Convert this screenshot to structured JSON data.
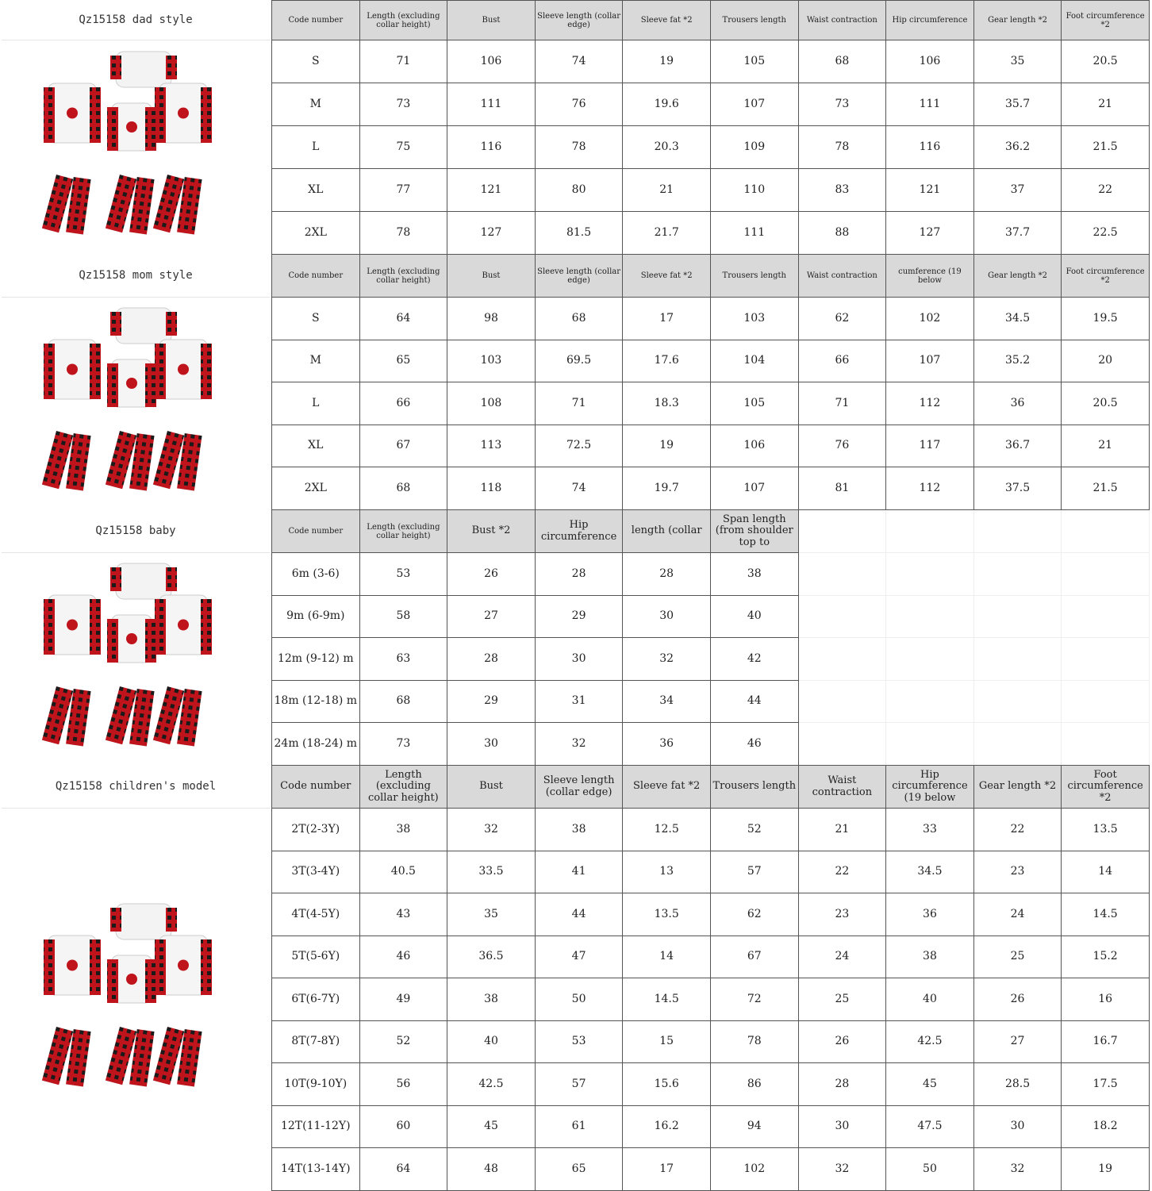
{
  "colors": {
    "header_bg": "#d9d9d9",
    "plaid_red": "#c0141c",
    "plaid_dark": "#1a1a1a"
  },
  "sections": [
    {
      "label": "Qz15158 dad style",
      "image": "family-christmas-pajamas-image",
      "header_size": "small",
      "headers": [
        "Code number",
        "Length (excluding collar height)",
        "Bust",
        "Sleeve length (collar edge)",
        "Sleeve fat *2",
        "Trousers length",
        "Waist contraction",
        "Hip circumference",
        "Gear length *2",
        "Foot circumference *2"
      ],
      "rows": [
        [
          "S",
          "71",
          "106",
          "74",
          "19",
          "105",
          "68",
          "106",
          "35",
          "20.5"
        ],
        [
          "M",
          "73",
          "111",
          "76",
          "19.6",
          "107",
          "73",
          "111",
          "35.7",
          "21"
        ],
        [
          "L",
          "75",
          "116",
          "78",
          "20.3",
          "109",
          "78",
          "116",
          "36.2",
          "21.5"
        ],
        [
          "XL",
          "77",
          "121",
          "80",
          "21",
          "110",
          "83",
          "121",
          "37",
          "22"
        ],
        [
          "2XL",
          "78",
          "127",
          "81.5",
          "21.7",
          "111",
          "88",
          "127",
          "37.7",
          "22.5"
        ]
      ]
    },
    {
      "label": "Qz15158 mom style",
      "image": "family-christmas-pajamas-image",
      "header_size": "small",
      "headers": [
        "Code number",
        "Length (excluding collar height)",
        "Bust",
        "Sleeve length (collar edge)",
        "Sleeve fat *2",
        "Trousers length",
        "Waist contraction",
        "cumference (19 below",
        "Gear length *2",
        "Foot circumference *2"
      ],
      "rows": [
        [
          "S",
          "64",
          "98",
          "68",
          "17",
          "103",
          "62",
          "102",
          "34.5",
          "19.5"
        ],
        [
          "M",
          "65",
          "103",
          "69.5",
          "17.6",
          "104",
          "66",
          "107",
          "35.2",
          "20"
        ],
        [
          "L",
          "66",
          "108",
          "71",
          "18.3",
          "105",
          "71",
          "112",
          "36",
          "20.5"
        ],
        [
          "XL",
          "67",
          "113",
          "72.5",
          "19",
          "106",
          "76",
          "117",
          "36.7",
          "21"
        ],
        [
          "2XL",
          "68",
          "118",
          "74",
          "19.7",
          "107",
          "81",
          "112",
          "37.5",
          "21.5"
        ]
      ]
    },
    {
      "label": "Qz15158 baby",
      "image": "family-christmas-pajamas-image",
      "header_size": "mixed",
      "headers": [
        "Code number",
        "Length (excluding collar height)",
        "Bust *2",
        "Hip circumference",
        "length (collar",
        "Span length (from shoulder top to"
      ],
      "rows": [
        [
          "6m (3-6)",
          "53",
          "26",
          "28",
          "28",
          "38"
        ],
        [
          "9m (6-9m)",
          "58",
          "27",
          "29",
          "30",
          "40"
        ],
        [
          "12m (9-12) m",
          "63",
          "28",
          "30",
          "32",
          "42"
        ],
        [
          "18m (12-18) m",
          "68",
          "29",
          "31",
          "34",
          "44"
        ],
        [
          "24m (18-24) m",
          "73",
          "30",
          "32",
          "36",
          "46"
        ]
      ]
    },
    {
      "label": "Qz15158 children's model",
      "image": "family-christmas-pajamas-image",
      "header_size": "big",
      "headers": [
        "Code number",
        "Length (excluding collar height)",
        "Bust",
        "Sleeve length (collar edge)",
        "Sleeve fat *2",
        "Trousers length",
        "Waist contraction",
        "Hip circumference (19 below",
        "Gear length *2",
        "Foot circumference *2"
      ],
      "rows": [
        [
          "2T(2-3Y)",
          "38",
          "32",
          "38",
          "12.5",
          "52",
          "21",
          "33",
          "22",
          "13.5"
        ],
        [
          "3T(3-4Y)",
          "40.5",
          "33.5",
          "41",
          "13",
          "57",
          "22",
          "34.5",
          "23",
          "14"
        ],
        [
          "4T(4-5Y)",
          "43",
          "35",
          "44",
          "13.5",
          "62",
          "23",
          "36",
          "24",
          "14.5"
        ],
        [
          "5T(5-6Y)",
          "46",
          "36.5",
          "47",
          "14",
          "67",
          "24",
          "38",
          "25",
          "15.2"
        ],
        [
          "6T(6-7Y)",
          "49",
          "38",
          "50",
          "14.5",
          "72",
          "25",
          "40",
          "26",
          "16"
        ],
        [
          "8T(7-8Y)",
          "52",
          "40",
          "53",
          "15",
          "78",
          "26",
          "42.5",
          "27",
          "16.7"
        ],
        [
          "10T(9-10Y)",
          "56",
          "42.5",
          "57",
          "15.6",
          "86",
          "28",
          "45",
          "28.5",
          "17.5"
        ],
        [
          "12T(11-12Y)",
          "60",
          "45",
          "61",
          "16.2",
          "94",
          "30",
          "47.5",
          "30",
          "18.2"
        ],
        [
          "14T(13-14Y)",
          "64",
          "48",
          "65",
          "17",
          "102",
          "32",
          "50",
          "32",
          "19"
        ]
      ]
    }
  ]
}
